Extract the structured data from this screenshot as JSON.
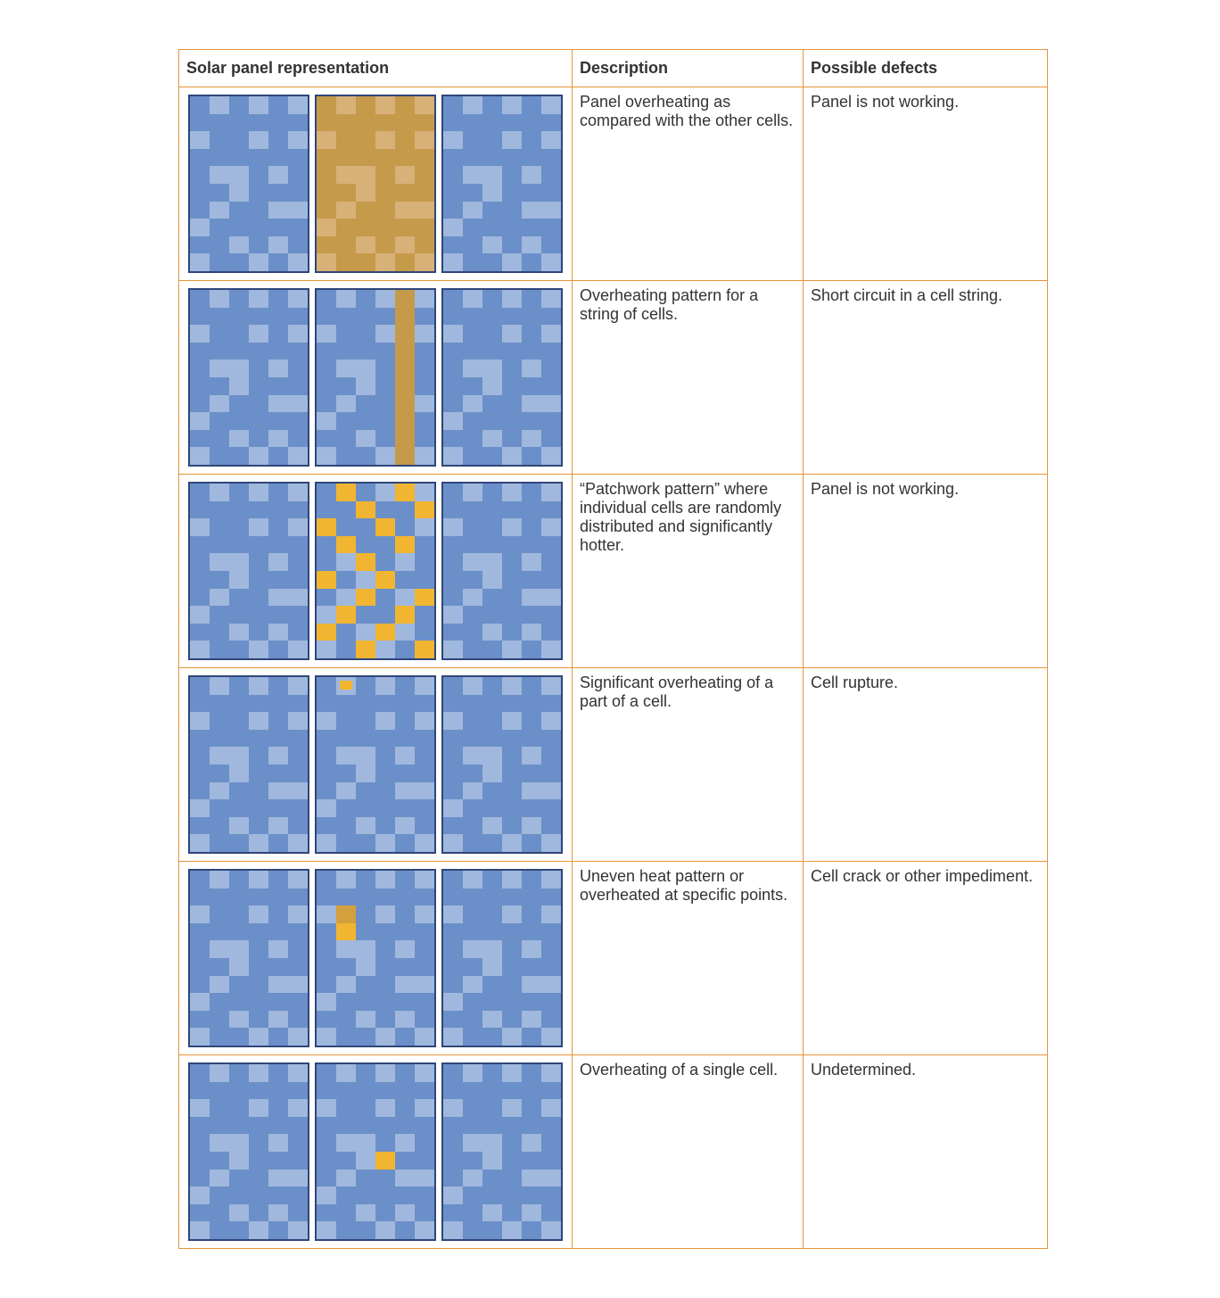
{
  "colors": {
    "border": "#e8943a",
    "panel_border": "#2e467a",
    "cell_base": "#6b8fc8",
    "cell_light": "#a0b8dd",
    "hot_panel_base": "#c69a4b",
    "hot_panel_light": "#d7b177",
    "hot_cell": "#f1b531",
    "hot_cell_dim": "#d4a03e"
  },
  "light_pattern": [
    [
      0,
      1,
      0,
      1,
      0,
      1
    ],
    [
      0,
      0,
      0,
      0,
      0,
      0
    ],
    [
      1,
      0,
      0,
      1,
      0,
      1
    ],
    [
      0,
      0,
      0,
      0,
      0,
      0
    ],
    [
      0,
      1,
      1,
      0,
      1,
      0
    ],
    [
      0,
      0,
      1,
      0,
      0,
      0
    ],
    [
      0,
      1,
      0,
      0,
      1,
      1
    ],
    [
      1,
      0,
      0,
      0,
      0,
      0
    ],
    [
      0,
      0,
      1,
      0,
      1,
      0
    ],
    [
      1,
      0,
      0,
      1,
      0,
      1
    ]
  ],
  "headers": {
    "representation": "Solar panel representation",
    "description": "Description",
    "defects": "Possible defects"
  },
  "rows": [
    {
      "description": "Panel overheating as compared with the other cells.",
      "defects": "Panel is not working.",
      "panels": [
        {
          "type": "normal"
        },
        {
          "type": "hot_full"
        },
        {
          "type": "normal"
        }
      ]
    },
    {
      "description": "Overheating pattern for a string of cells.",
      "defects": "Short circuit in a cell string.",
      "panels": [
        {
          "type": "normal"
        },
        {
          "type": "normal",
          "string_column": 4
        },
        {
          "type": "normal"
        }
      ]
    },
    {
      "description": "“Patchwork pattern” where individual cells are randomly distributed and significantly hotter.",
      "defects": "Panel is not working.",
      "panels": [
        {
          "type": "normal"
        },
        {
          "type": "normal",
          "patchwork": [
            [
              0,
              1
            ],
            [
              0,
              4
            ],
            [
              1,
              2
            ],
            [
              1,
              5
            ],
            [
              2,
              0
            ],
            [
              2,
              3
            ],
            [
              3,
              1
            ],
            [
              3,
              4
            ],
            [
              4,
              2
            ],
            [
              5,
              0
            ],
            [
              5,
              3
            ],
            [
              6,
              2
            ],
            [
              6,
              5
            ],
            [
              7,
              1
            ],
            [
              7,
              4
            ],
            [
              8,
              0
            ],
            [
              8,
              3
            ],
            [
              9,
              2
            ],
            [
              9,
              5
            ]
          ]
        },
        {
          "type": "normal"
        }
      ]
    },
    {
      "description": "Significant overheating of a part of a cell.",
      "defects": "Cell rupture.",
      "panels": [
        {
          "type": "normal"
        },
        {
          "type": "normal",
          "part_cell": {
            "r": 0,
            "c": 1,
            "w": 0.6,
            "h": 0.5
          }
        },
        {
          "type": "normal"
        }
      ]
    },
    {
      "description": "Uneven heat pattern or overheated at specific points.",
      "defects": "Cell crack or other impediment.",
      "panels": [
        {
          "type": "normal"
        },
        {
          "type": "normal",
          "hot_cells": [
            [
              3,
              1
            ]
          ],
          "hot_cells_dim": [
            [
              2,
              1
            ]
          ]
        },
        {
          "type": "normal"
        }
      ]
    },
    {
      "description": "Overheating of a single cell.",
      "defects": "Undetermined.",
      "panels": [
        {
          "type": "normal"
        },
        {
          "type": "normal",
          "hot_cells": [
            [
              5,
              3
            ]
          ]
        },
        {
          "type": "normal"
        }
      ]
    }
  ]
}
